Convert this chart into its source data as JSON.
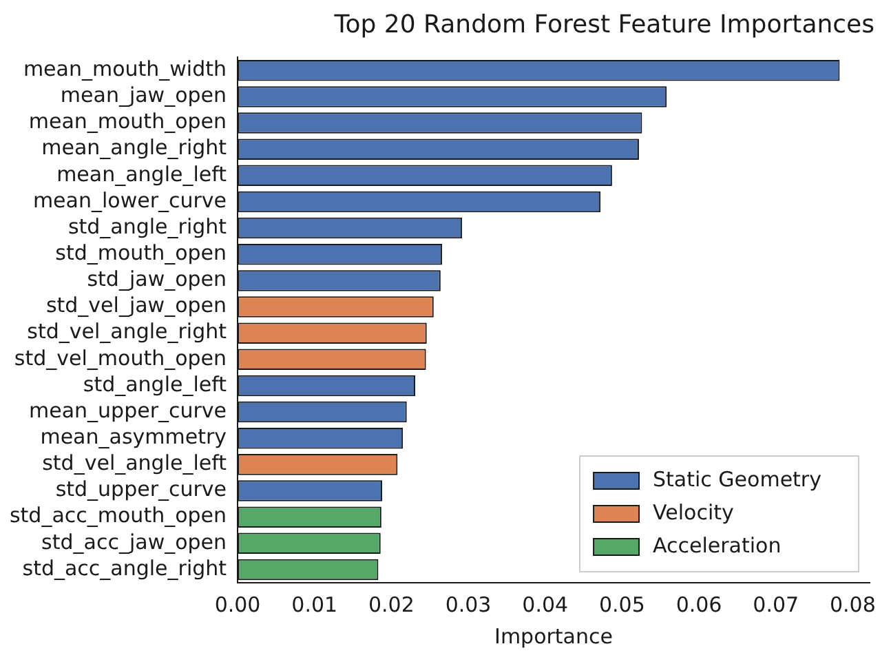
{
  "chart_data": {
    "type": "bar",
    "orientation": "horizontal",
    "title": "Top 20 Random Forest Feature Importances",
    "xlabel": "Importance",
    "categories": [
      "mean_mouth_width",
      "mean_jaw_open",
      "mean_mouth_open",
      "mean_angle_right",
      "mean_angle_left",
      "mean_lower_curve",
      "std_angle_right",
      "std_mouth_open",
      "std_jaw_open",
      "std_vel_jaw_open",
      "std_vel_angle_right",
      "std_vel_mouth_open",
      "std_angle_left",
      "mean_upper_curve",
      "mean_asymmetry",
      "std_vel_angle_left",
      "std_upper_curve",
      "std_acc_mouth_open",
      "std_acc_jaw_open",
      "std_acc_angle_right"
    ],
    "series": [
      {
        "name": "Static Geometry",
        "color": "#4c72b0",
        "values": [
          0.0783,
          0.0558,
          0.0526,
          0.0522,
          0.0487,
          0.0472,
          0.0292,
          0.0266,
          0.0264,
          null,
          null,
          null,
          0.0231,
          0.022,
          0.0215,
          null,
          0.0188,
          null,
          null,
          null
        ]
      },
      {
        "name": "Velocity",
        "color": "#dd8452",
        "values": [
          null,
          null,
          null,
          null,
          null,
          null,
          null,
          null,
          null,
          0.0255,
          0.0246,
          0.0245,
          null,
          null,
          null,
          0.0208,
          null,
          null,
          null,
          null
        ]
      },
      {
        "name": "Acceleration",
        "color": "#55a868",
        "values": [
          null,
          null,
          null,
          null,
          null,
          null,
          null,
          null,
          null,
          null,
          null,
          null,
          null,
          null,
          null,
          null,
          null,
          0.0187,
          0.0186,
          0.0183
        ]
      }
    ],
    "xlim": [
      0,
      0.0822
    ],
    "xticks": [
      {
        "value": 0,
        "label": "0.00"
      },
      {
        "value": 0.01,
        "label": "0.01"
      },
      {
        "value": 0.02,
        "label": "0.02"
      },
      {
        "value": 0.03,
        "label": "0.03"
      },
      {
        "value": 0.04,
        "label": "0.04"
      },
      {
        "value": 0.05,
        "label": "0.05"
      },
      {
        "value": 0.06,
        "label": "0.06"
      },
      {
        "value": 0.07,
        "label": "0.07"
      },
      {
        "value": 0.08,
        "label": "0.08"
      }
    ],
    "grid": false,
    "legend": "bottom right"
  }
}
